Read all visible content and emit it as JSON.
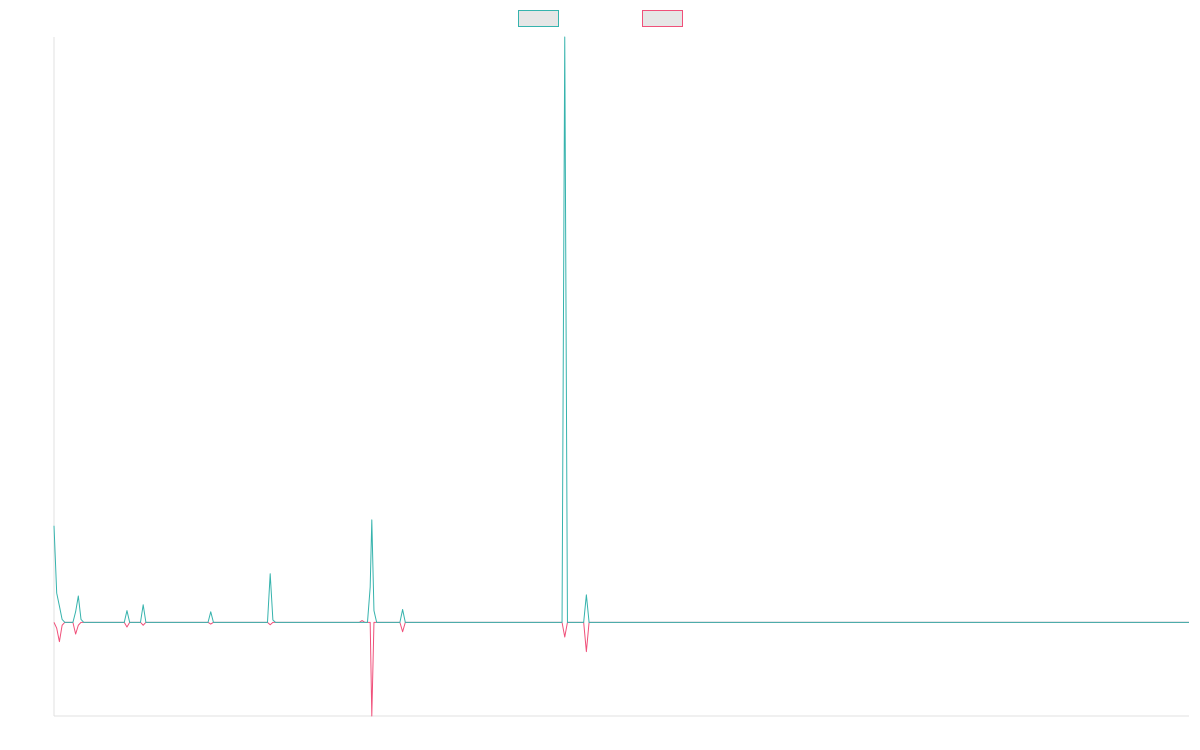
{
  "chart_data": {
    "type": "line",
    "title": "",
    "xlabel": "",
    "ylabel": "",
    "grid": false,
    "legend_placement": "top",
    "x_min": 0,
    "x_max": 210,
    "ylim": [
      -0.16,
      1.0
    ],
    "series": [
      {
        "color": "#36b3ad",
        "legend_fill": "#e6e6e6",
        "points": [
          [
            0,
            0.165
          ],
          [
            0.5,
            0.05
          ],
          [
            1,
            0.028
          ],
          [
            1.5,
            0.005
          ],
          [
            2,
            0.0
          ],
          [
            3.5,
            0.0
          ],
          [
            4,
            0.018
          ],
          [
            4.5,
            0.045
          ],
          [
            5,
            0.005
          ],
          [
            5.5,
            0.0
          ],
          [
            13,
            0.0
          ],
          [
            13.5,
            0.02
          ],
          [
            14,
            0.0
          ],
          [
            16,
            0.0
          ],
          [
            16.5,
            0.03
          ],
          [
            17,
            0.0
          ],
          [
            28.5,
            0.0
          ],
          [
            29,
            0.018
          ],
          [
            29.5,
            0.0
          ],
          [
            39.5,
            0.0
          ],
          [
            40,
            0.083
          ],
          [
            40.5,
            0.004
          ],
          [
            41,
            0.0
          ],
          [
            58,
            0.0
          ],
          [
            58.5,
            0.06
          ],
          [
            58.8,
            0.175
          ],
          [
            59.2,
            0.02
          ],
          [
            59.7,
            0.0
          ],
          [
            64,
            0.0
          ],
          [
            64.5,
            0.022
          ],
          [
            65,
            0.0
          ],
          [
            94,
            0.0
          ],
          [
            94.5,
            1.0
          ],
          [
            95,
            0.0
          ],
          [
            98,
            0.0
          ],
          [
            98.5,
            0.047
          ],
          [
            99,
            0.0
          ],
          [
            210,
            0.0
          ]
        ]
      },
      {
        "color": "#f0507a",
        "legend_fill": "#e6e6e6",
        "points": [
          [
            0,
            0.0
          ],
          [
            0.5,
            -0.01
          ],
          [
            1,
            -0.033
          ],
          [
            1.5,
            -0.005
          ],
          [
            2,
            0.0
          ],
          [
            3.5,
            0.0
          ],
          [
            4,
            -0.02
          ],
          [
            4.5,
            -0.005
          ],
          [
            5,
            0.0
          ],
          [
            13,
            0.0
          ],
          [
            13.5,
            -0.008
          ],
          [
            14,
            0.0
          ],
          [
            16,
            0.0
          ],
          [
            16.5,
            -0.005
          ],
          [
            17,
            0.0
          ],
          [
            28.5,
            0.0
          ],
          [
            29,
            -0.003
          ],
          [
            29.5,
            0.0
          ],
          [
            39.5,
            0.0
          ],
          [
            40,
            -0.004
          ],
          [
            40.5,
            0.0
          ],
          [
            56.5,
            0.0
          ],
          [
            57,
            0.003
          ],
          [
            57.5,
            0.0
          ],
          [
            58.5,
            0.0
          ],
          [
            58.8,
            -0.16
          ],
          [
            59.2,
            0.0
          ],
          [
            64,
            0.0
          ],
          [
            64.5,
            -0.016
          ],
          [
            65,
            0.0
          ],
          [
            94,
            0.0
          ],
          [
            94.5,
            -0.025
          ],
          [
            95,
            0.0
          ],
          [
            98,
            0.0
          ],
          [
            98.5,
            -0.05
          ],
          [
            99,
            0.0
          ],
          [
            210,
            0.0
          ]
        ]
      }
    ]
  },
  "axes": {
    "axis_color": "#e0e0e0"
  }
}
